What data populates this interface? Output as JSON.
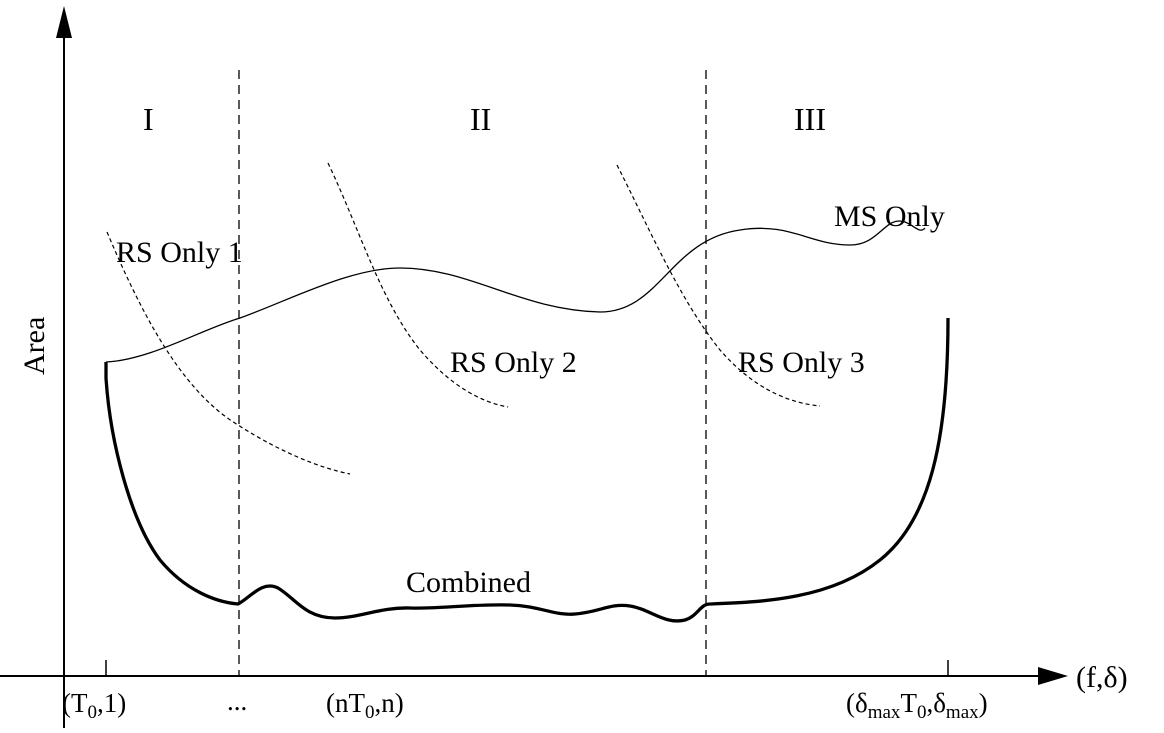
{
  "diagram": {
    "axes": {
      "y_label": "Area",
      "x_label": "(f,δ)"
    },
    "regions": [
      {
        "label": "I"
      },
      {
        "label": "II"
      },
      {
        "label": "III"
      }
    ],
    "curves": {
      "ms_only": "MS Only",
      "rs_only_1": "RS Only 1",
      "rs_only_2": "RS Only 2",
      "rs_only_3": "RS Only 3",
      "combined": "Combined"
    },
    "x_ticks": {
      "t0_1": {
        "base": "(T",
        "sub": "0",
        "rest": ",1)"
      },
      "ellipsis": "...",
      "nt0_n": {
        "base": "(nT",
        "sub": "0",
        "rest": ",n)"
      },
      "dmax": {
        "open": "(δ",
        "sub1": "max",
        "mid": "T",
        "sub2": "0",
        "mid2": ",δ",
        "sub3": "max",
        "close": ")"
      }
    }
  }
}
